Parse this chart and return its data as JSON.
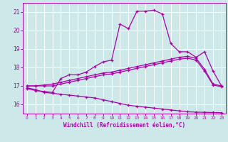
{
  "background_color": "#cce8e8",
  "grid_color": "#ffffff",
  "line_color": "#aa00aa",
  "xlabel": "Windchill (Refroidissement éolien,°C)",
  "ylim": [
    15.5,
    21.5
  ],
  "xlim": [
    -0.5,
    23.5
  ],
  "yticks": [
    16,
    17,
    18,
    19,
    20,
    21
  ],
  "xticks": [
    0,
    1,
    2,
    3,
    4,
    5,
    6,
    7,
    8,
    9,
    10,
    11,
    12,
    13,
    14,
    15,
    16,
    17,
    18,
    19,
    20,
    21,
    22,
    23
  ],
  "curve_top_x": [
    0,
    1,
    2,
    3,
    4,
    5,
    6,
    7,
    8,
    9,
    10,
    11,
    12,
    13,
    14,
    15,
    16,
    17,
    18,
    19,
    20,
    21,
    22,
    23
  ],
  "curve_top_y": [
    16.85,
    16.75,
    16.7,
    16.65,
    17.4,
    17.6,
    17.6,
    17.75,
    18.05,
    18.3,
    18.4,
    20.35,
    20.1,
    21.05,
    21.05,
    21.1,
    20.9,
    19.3,
    18.85,
    18.85,
    18.55,
    18.85,
    17.8,
    17.0
  ],
  "curve_mid1_x": [
    0,
    1,
    2,
    3,
    4,
    5,
    6,
    7,
    8,
    9,
    10,
    11,
    12,
    13,
    14,
    15,
    16,
    17,
    18,
    19,
    20,
    21,
    22,
    23
  ],
  "curve_mid1_y": [
    17.0,
    17.0,
    17.05,
    17.1,
    17.2,
    17.3,
    17.4,
    17.5,
    17.6,
    17.7,
    17.75,
    17.85,
    17.95,
    18.05,
    18.15,
    18.25,
    18.35,
    18.45,
    18.55,
    18.6,
    18.5,
    17.9,
    17.1,
    17.0
  ],
  "curve_mid2_x": [
    0,
    1,
    2,
    3,
    4,
    5,
    6,
    7,
    8,
    9,
    10,
    11,
    12,
    13,
    14,
    15,
    16,
    17,
    18,
    19,
    20,
    21,
    22,
    23
  ],
  "curve_mid2_y": [
    17.0,
    17.0,
    17.0,
    17.0,
    17.1,
    17.2,
    17.3,
    17.4,
    17.5,
    17.6,
    17.65,
    17.75,
    17.85,
    17.95,
    18.05,
    18.15,
    18.25,
    18.35,
    18.45,
    18.5,
    18.4,
    17.8,
    17.05,
    16.95
  ],
  "curve_bot_x": [
    0,
    1,
    2,
    3,
    4,
    5,
    6,
    7,
    8,
    9,
    10,
    11,
    12,
    13,
    14,
    15,
    16,
    17,
    18,
    19,
    20,
    21,
    22,
    23
  ],
  "curve_bot_y": [
    16.9,
    16.8,
    16.65,
    16.6,
    16.55,
    16.5,
    16.45,
    16.4,
    16.35,
    16.25,
    16.15,
    16.05,
    15.95,
    15.9,
    15.85,
    15.8,
    15.75,
    15.7,
    15.65,
    15.6,
    15.58,
    15.57,
    15.56,
    15.55
  ]
}
